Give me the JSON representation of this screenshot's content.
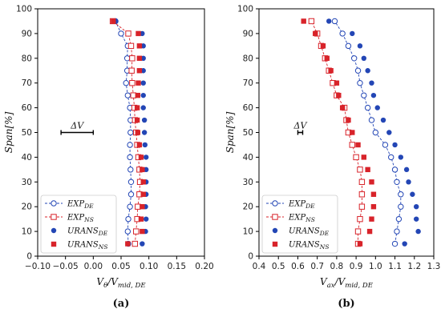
{
  "chart_data": [
    {
      "type": "line",
      "panel_label": "(a)",
      "xlabel": "V_θ / V_mid,DE",
      "xlabel_main": "V",
      "xlabel_main_sub": "θ",
      "xlabel_den": "/V",
      "xlabel_den_sub": "mid, DE",
      "ylabel": "Span[%]",
      "xlim": [
        -0.1,
        0.2
      ],
      "ylim": [
        0,
        100
      ],
      "xticks": [
        -0.1,
        -0.05,
        0.0,
        0.05,
        0.1,
        0.15,
        0.2
      ],
      "xtick_labels": [
        "−0.10",
        "−0.05",
        "0.00",
        "0.05",
        "0.10",
        "0.15",
        "0.20"
      ],
      "yticks": [
        0,
        10,
        20,
        30,
        40,
        50,
        60,
        70,
        80,
        90,
        100
      ],
      "ytick_labels": [
        "0",
        "10",
        "20",
        "30",
        "40",
        "50",
        "60",
        "70",
        "80",
        "90",
        "100"
      ],
      "grid": false,
      "legend_position": "bottom-left",
      "annotation": {
        "text": "ΔV",
        "x0": -0.058,
        "x1": 0.0,
        "y": 50
      },
      "series": [
        {
          "name": "EXP",
          "sub": "DE",
          "kind": "line-open-circle",
          "color": "#2346b5",
          "points": [
            [
              0.063,
              5
            ],
            [
              0.062,
              10
            ],
            [
              0.063,
              15
            ],
            [
              0.066,
              20
            ],
            [
              0.068,
              25
            ],
            [
              0.068,
              30
            ],
            [
              0.067,
              35
            ],
            [
              0.066,
              40
            ],
            [
              0.066,
              45
            ],
            [
              0.067,
              50
            ],
            [
              0.067,
              55
            ],
            [
              0.066,
              60
            ],
            [
              0.062,
              65
            ],
            [
              0.059,
              70
            ],
            [
              0.061,
              75
            ],
            [
              0.061,
              80
            ],
            [
              0.062,
              85
            ],
            [
              0.05,
              90
            ],
            [
              0.04,
              95
            ]
          ]
        },
        {
          "name": "EXP",
          "sub": "NS",
          "kind": "line-open-square",
          "color": "#d8232a",
          "points": [
            [
              0.075,
              5
            ],
            [
              0.077,
              10
            ],
            [
              0.079,
              15
            ],
            [
              0.08,
              20
            ],
            [
              0.083,
              25
            ],
            [
              0.084,
              30
            ],
            [
              0.083,
              35
            ],
            [
              0.081,
              40
            ],
            [
              0.079,
              45
            ],
            [
              0.077,
              50
            ],
            [
              0.075,
              55
            ],
            [
              0.074,
              60
            ],
            [
              0.072,
              65
            ],
            [
              0.07,
              70
            ],
            [
              0.069,
              75
            ],
            [
              0.07,
              80
            ],
            [
              0.068,
              85
            ],
            [
              0.063,
              90
            ],
            [
              0.035,
              95
            ]
          ]
        },
        {
          "name": "URANS",
          "sub": "DE",
          "kind": "filled-circle",
          "color": "#2346b5",
          "points": [
            [
              0.088,
              5
            ],
            [
              0.094,
              10
            ],
            [
              0.095,
              15
            ],
            [
              0.094,
              20
            ],
            [
              0.095,
              25
            ],
            [
              0.095,
              30
            ],
            [
              0.095,
              35
            ],
            [
              0.095,
              40
            ],
            [
              0.093,
              45
            ],
            [
              0.092,
              50
            ],
            [
              0.092,
              55
            ],
            [
              0.09,
              60
            ],
            [
              0.09,
              65
            ],
            [
              0.09,
              70
            ],
            [
              0.09,
              75
            ],
            [
              0.09,
              80
            ],
            [
              0.09,
              85
            ],
            [
              0.088,
              90
            ],
            [
              0.04,
              95
            ]
          ]
        },
        {
          "name": "URANS",
          "sub": "NS",
          "kind": "filled-square",
          "color": "#d8232a",
          "points": [
            [
              0.062,
              5
            ],
            [
              0.088,
              10
            ],
            [
              0.086,
              15
            ],
            [
              0.088,
              20
            ],
            [
              0.09,
              25
            ],
            [
              0.09,
              30
            ],
            [
              0.088,
              35
            ],
            [
              0.086,
              40
            ],
            [
              0.083,
              45
            ],
            [
              0.08,
              50
            ],
            [
              0.079,
              55
            ],
            [
              0.079,
              60
            ],
            [
              0.08,
              65
            ],
            [
              0.081,
              70
            ],
            [
              0.083,
              75
            ],
            [
              0.083,
              80
            ],
            [
              0.083,
              85
            ],
            [
              0.081,
              90
            ],
            [
              0.036,
              95
            ]
          ]
        }
      ]
    },
    {
      "type": "line",
      "panel_label": "(b)",
      "xlabel": "V_ax / V_mid,DE",
      "xlabel_main": "V",
      "xlabel_main_sub": "ax",
      "xlabel_den": "/V",
      "xlabel_den_sub": "mid, DE",
      "ylabel": "Span[%]",
      "xlim": [
        0.4,
        1.3
      ],
      "ylim": [
        0,
        100
      ],
      "xticks": [
        0.4,
        0.5,
        0.6,
        0.7,
        0.8,
        0.9,
        1.0,
        1.1,
        1.2,
        1.3
      ],
      "xtick_labels": [
        "0.4",
        "0.5",
        "0.6",
        "0.7",
        "0.8",
        "0.9",
        "1.0",
        "1.1",
        "1.2",
        "1.3"
      ],
      "yticks": [
        0,
        10,
        20,
        30,
        40,
        50,
        60,
        70,
        80,
        90,
        100
      ],
      "ytick_labels": [
        "0",
        "10",
        "20",
        "30",
        "40",
        "50",
        "60",
        "70",
        "80",
        "90",
        "100"
      ],
      "grid": false,
      "legend_position": "bottom-left",
      "annotation": {
        "text": "ΔV",
        "x0": 0.6,
        "x1": 0.625,
        "y": 50
      },
      "series": [
        {
          "name": "EXP",
          "sub": "DE",
          "kind": "line-open-circle",
          "color": "#2346b5",
          "points": [
            [
              1.1,
              5
            ],
            [
              1.11,
              10
            ],
            [
              1.12,
              15
            ],
            [
              1.13,
              20
            ],
            [
              1.13,
              25
            ],
            [
              1.11,
              30
            ],
            [
              1.1,
              35
            ],
            [
              1.08,
              40
            ],
            [
              1.05,
              45
            ],
            [
              1.0,
              50
            ],
            [
              0.98,
              55
            ],
            [
              0.96,
              60
            ],
            [
              0.94,
              65
            ],
            [
              0.92,
              70
            ],
            [
              0.91,
              75
            ],
            [
              0.89,
              80
            ],
            [
              0.86,
              85
            ],
            [
              0.83,
              90
            ],
            [
              0.79,
              95
            ]
          ]
        },
        {
          "name": "EXP",
          "sub": "NS",
          "kind": "line-open-square",
          "color": "#d8232a",
          "points": [
            [
              0.91,
              5
            ],
            [
              0.91,
              10
            ],
            [
              0.92,
              15
            ],
            [
              0.93,
              20
            ],
            [
              0.93,
              25
            ],
            [
              0.93,
              30
            ],
            [
              0.92,
              35
            ],
            [
              0.9,
              40
            ],
            [
              0.88,
              45
            ],
            [
              0.86,
              50
            ],
            [
              0.85,
              55
            ],
            [
              0.84,
              60
            ],
            [
              0.8,
              65
            ],
            [
              0.78,
              70
            ],
            [
              0.76,
              75
            ],
            [
              0.74,
              80
            ],
            [
              0.72,
              85
            ],
            [
              0.7,
              90
            ],
            [
              0.67,
              95
            ]
          ]
        },
        {
          "name": "URANS",
          "sub": "DE",
          "kind": "filled-circle",
          "color": "#2346b5",
          "points": [
            [
              1.15,
              5
            ],
            [
              1.22,
              10
            ],
            [
              1.21,
              15
            ],
            [
              1.21,
              20
            ],
            [
              1.19,
              25
            ],
            [
              1.17,
              30
            ],
            [
              1.16,
              35
            ],
            [
              1.13,
              40
            ],
            [
              1.1,
              45
            ],
            [
              1.07,
              50
            ],
            [
              1.04,
              55
            ],
            [
              1.01,
              60
            ],
            [
              0.99,
              65
            ],
            [
              0.98,
              70
            ],
            [
              0.96,
              75
            ],
            [
              0.94,
              80
            ],
            [
              0.92,
              85
            ],
            [
              0.88,
              90
            ],
            [
              0.76,
              95
            ]
          ]
        },
        {
          "name": "URANS",
          "sub": "NS",
          "kind": "filled-square",
          "color": "#d8232a",
          "points": [
            [
              0.92,
              5
            ],
            [
              0.97,
              10
            ],
            [
              0.98,
              15
            ],
            [
              0.99,
              20
            ],
            [
              0.99,
              25
            ],
            [
              0.98,
              30
            ],
            [
              0.96,
              35
            ],
            [
              0.94,
              40
            ],
            [
              0.91,
              45
            ],
            [
              0.88,
              50
            ],
            [
              0.86,
              55
            ],
            [
              0.83,
              60
            ],
            [
              0.81,
              65
            ],
            [
              0.8,
              70
            ],
            [
              0.77,
              75
            ],
            [
              0.75,
              80
            ],
            [
              0.73,
              85
            ],
            [
              0.69,
              90
            ],
            [
              0.63,
              95
            ]
          ]
        }
      ]
    }
  ]
}
